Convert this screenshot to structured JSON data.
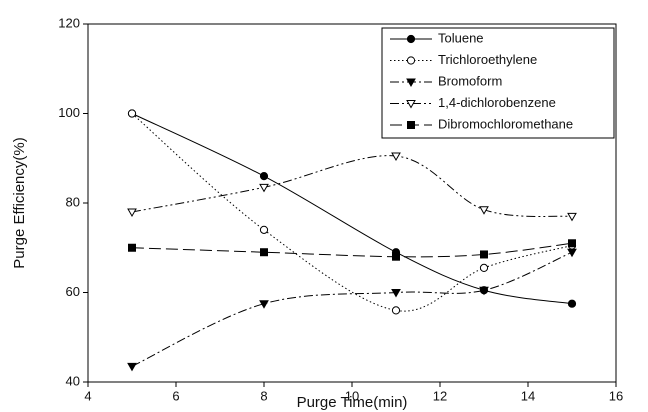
{
  "chart_data": {
    "type": "line",
    "x_label": "Purge Time(min)",
    "y_label": "Purge Efficiency(%)",
    "x": [
      5,
      8,
      11,
      13,
      15
    ],
    "xlim": [
      4,
      16
    ],
    "xticks": [
      4,
      6,
      8,
      10,
      12,
      14,
      16
    ],
    "ylim": [
      40,
      120
    ],
    "yticks": [
      40,
      60,
      80,
      100,
      120
    ],
    "legend": "upper right",
    "smooth": true,
    "series": [
      {
        "name": "Toluene",
        "color": "#000000",
        "dash": "solid",
        "marker": "circle",
        "marker_filled": true,
        "values": [
          100,
          86,
          69,
          60.5,
          57.5
        ]
      },
      {
        "name": "Trichloroethylene",
        "color": "#000000",
        "dash": "dotted",
        "marker": "circle",
        "marker_filled": false,
        "values": [
          100,
          74,
          56,
          65.5,
          70.5
        ]
      },
      {
        "name": "Bromoform",
        "color": "#000000",
        "dash": "dashdot",
        "marker": "triangle-down",
        "marker_filled": true,
        "values": [
          43.5,
          57.5,
          60,
          60.5,
          69
        ]
      },
      {
        "name": "1,4-dichlorobenzene",
        "color": "#000000",
        "dash": "dashdotdot",
        "marker": "triangle-down",
        "marker_filled": false,
        "values": [
          78,
          83.5,
          90.5,
          78.5,
          77
        ]
      },
      {
        "name": "Dibromochloromethane",
        "color": "#000000",
        "dash": "longdash",
        "marker": "square",
        "marker_filled": true,
        "values": [
          70,
          69,
          68,
          68.5,
          71
        ]
      }
    ]
  }
}
